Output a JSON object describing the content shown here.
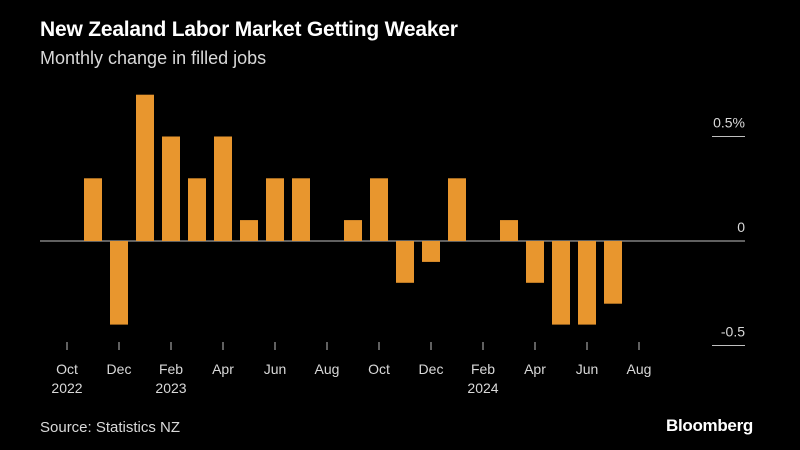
{
  "chart_data": {
    "type": "bar",
    "title": "New Zealand Labor Market Getting Weaker",
    "subtitle": "Monthly change in filled jobs",
    "source": "Source: Statistics NZ",
    "brand": "Bloomberg",
    "ylim": [
      -0.55,
      0.72
    ],
    "bar_color": "#e8962e",
    "y_ticks": [
      {
        "value": 0.5,
        "label": "0.5%"
      },
      {
        "value": 0,
        "label": "0"
      },
      {
        "value": -0.5,
        "label": "-0.5"
      }
    ],
    "x_tick_labels": [
      {
        "index": 0,
        "month": "Oct",
        "year": "2022"
      },
      {
        "index": 2,
        "month": "Dec",
        "year": ""
      },
      {
        "index": 4,
        "month": "Feb",
        "year": "2023"
      },
      {
        "index": 6,
        "month": "Apr",
        "year": ""
      },
      {
        "index": 8,
        "month": "Jun",
        "year": ""
      },
      {
        "index": 10,
        "month": "Aug",
        "year": ""
      },
      {
        "index": 12,
        "month": "Oct",
        "year": ""
      },
      {
        "index": 14,
        "month": "Dec",
        "year": ""
      },
      {
        "index": 16,
        "month": "Feb",
        "year": "2024"
      },
      {
        "index": 18,
        "month": "Apr",
        "year": ""
      },
      {
        "index": 20,
        "month": "Jun",
        "year": ""
      },
      {
        "index": 22,
        "month": "Aug",
        "year": ""
      }
    ],
    "categories": [
      "Oct 2022",
      "Nov 2022",
      "Dec 2022",
      "Jan 2023",
      "Feb 2023",
      "Mar 2023",
      "Apr 2023",
      "May 2023",
      "Jun 2023",
      "Jul 2023",
      "Aug 2023",
      "Sep 2023",
      "Oct 2023",
      "Nov 2023",
      "Dec 2023",
      "Jan 2024",
      "Feb 2024",
      "Mar 2024",
      "Apr 2024",
      "May 2024",
      "Jun 2024",
      "Jul 2024",
      "Aug 2024",
      "Sep 2024"
    ],
    "values": [
      0.0,
      0.3,
      -0.4,
      0.7,
      0.5,
      0.3,
      0.5,
      0.1,
      0.3,
      0.3,
      0.0,
      0.1,
      0.3,
      -0.2,
      -0.1,
      0.3,
      0.0,
      0.1,
      -0.2,
      -0.4,
      -0.4,
      -0.3,
      0.0,
      0.0
    ]
  }
}
